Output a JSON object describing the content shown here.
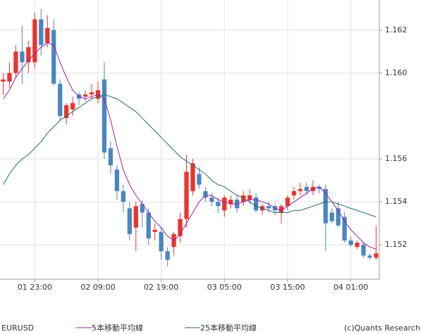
{
  "chart_data": {
    "type": "candlestick",
    "symbol": "EURUSD",
    "source": "(c)Quants Research",
    "categories": [
      null,
      null,
      null,
      null,
      null,
      "01 23:00",
      null,
      null,
      null,
      null,
      null,
      null,
      null,
      null,
      null,
      "02 09:00",
      null,
      null,
      null,
      null,
      null,
      null,
      null,
      null,
      null,
      "02 19:00",
      null,
      null,
      null,
      null,
      null,
      null,
      null,
      null,
      null,
      "03 05:00",
      null,
      null,
      null,
      null,
      null,
      null,
      null,
      null,
      null,
      "03 15:00",
      null,
      null,
      null,
      null,
      null,
      null,
      null,
      null,
      null,
      "04 01:00",
      null,
      null,
      null,
      null
    ],
    "open": [
      1.1596,
      1.1596,
      1.16,
      1.161,
      1.1605,
      1.1605,
      1.1625,
      1.1614,
      1.162,
      1.1595,
      1.1579,
      1.1583,
      1.159,
      1.1589,
      1.159,
      1.1588,
      1.1597,
      1.1565,
      1.1555,
      1.1545,
      1.1537,
      1.1528,
      1.1539,
      1.1535,
      1.1526,
      1.1526,
      1.1517,
      1.1519,
      1.1524,
      1.1532,
      1.1545,
      1.1553,
      1.1545,
      1.1542,
      1.154,
      1.1536,
      1.1539,
      1.1541,
      1.154,
      1.1541,
      1.1542,
      1.1536,
      1.1538,
      1.1538,
      1.1535,
      1.1538,
      1.1543,
      1.1545,
      1.1547,
      1.1545,
      1.1547,
      1.1546,
      1.1535,
      1.1537,
      1.1533,
      1.1522,
      1.1519,
      1.152,
      1.1515,
      1.1514
    ],
    "high": [
      1.16,
      1.1605,
      1.1613,
      1.1622,
      1.1615,
      1.1628,
      1.163,
      1.1627,
      1.1625,
      1.1597,
      1.1586,
      1.1589,
      1.1591,
      1.1592,
      1.1595,
      1.1596,
      1.1605,
      1.1568,
      1.1557,
      1.1548,
      1.154,
      1.154,
      1.1541,
      1.1537,
      1.153,
      1.1528,
      1.1519,
      1.1526,
      1.1535,
      1.1562,
      1.156,
      1.1556,
      1.1547,
      1.1544,
      1.1542,
      1.1543,
      1.1543,
      1.1543,
      1.1545,
      1.1546,
      1.1544,
      1.1539,
      1.154,
      1.1539,
      1.1539,
      1.1543,
      1.1547,
      1.1549,
      1.1549,
      1.155,
      1.1548,
      1.1548,
      1.1537,
      1.154,
      1.1535,
      1.1524,
      1.1522,
      1.1521,
      1.1516,
      1.1529
    ],
    "low": [
      1.159,
      1.1593,
      1.1598,
      1.1595,
      1.16,
      1.1602,
      1.1608,
      1.1612,
      1.1594,
      1.1578,
      1.1576,
      1.158,
      1.1585,
      1.1587,
      1.1588,
      1.1586,
      1.156,
      1.1553,
      1.1541,
      1.1535,
      1.1522,
      1.1517,
      1.1528,
      1.152,
      1.1522,
      1.1513,
      1.151,
      1.1515,
      1.1521,
      1.1528,
      1.1543,
      1.1546,
      1.154,
      1.1538,
      1.1535,
      1.1533,
      1.1537,
      1.1535,
      1.1538,
      1.1539,
      1.1535,
      1.1534,
      1.1535,
      1.1534,
      1.153,
      1.1536,
      1.1541,
      1.1543,
      1.1543,
      1.1543,
      1.1544,
      1.1517,
      1.153,
      1.1528,
      1.1521,
      1.1519,
      1.1518,
      1.1514,
      1.1513,
      1.1513
    ],
    "close": [
      1.1597,
      1.16,
      1.161,
      1.1605,
      1.1612,
      1.1625,
      1.1613,
      1.1621,
      1.1595,
      1.158,
      1.1585,
      1.1586,
      1.1588,
      1.159,
      1.1591,
      1.1592,
      1.1563,
      1.1557,
      1.1545,
      1.154,
      1.1525,
      1.1538,
      1.1535,
      1.1523,
      1.1527,
      1.1517,
      1.1513,
      1.1525,
      1.1532,
      1.1554,
      1.1558,
      1.1548,
      1.1542,
      1.154,
      1.1538,
      1.1542,
      1.1541,
      1.1537,
      1.1543,
      1.1543,
      1.1536,
      1.1538,
      1.1537,
      1.1536,
      1.1538,
      1.1542,
      1.1545,
      1.1546,
      1.1545,
      1.1547,
      1.1546,
      1.153,
      1.1531,
      1.1529,
      1.1522,
      1.152,
      1.1521,
      1.1515,
      1.1514,
      1.1516
    ],
    "up_color": "#e8352e",
    "down_color": "#4a86bf",
    "series": [
      {
        "name": "5本移動平均線",
        "color": "#9b1fa8",
        "values": [
          1.1588,
          1.1592,
          1.1598,
          1.1602,
          1.1606,
          1.1609,
          1.1612,
          1.1614,
          1.1613,
          1.1605,
          1.1598,
          1.1592,
          1.1589,
          1.1588,
          1.1589,
          1.159,
          1.1588,
          1.1578,
          1.1566,
          1.1555,
          1.1548,
          1.1543,
          1.1539,
          1.1535,
          1.1531,
          1.1528,
          1.1524,
          1.1522,
          1.1525,
          1.153,
          1.1535,
          1.154,
          1.1543,
          1.1543,
          1.1541,
          1.154,
          1.1539,
          1.1539,
          1.154,
          1.1541,
          1.1541,
          1.154,
          1.1539,
          1.1537,
          1.1536,
          1.1538,
          1.154,
          1.1542,
          1.1544,
          1.1546,
          1.1547,
          1.1544,
          1.154,
          1.1536,
          1.1531,
          1.1527,
          1.1524,
          1.1521,
          1.1519,
          1.1518
        ]
      },
      {
        "name": "25本移動平均線",
        "color": "#1f6f6a",
        "values": [
          1.1548,
          1.1553,
          1.1557,
          1.156,
          1.1562,
          1.1565,
          1.1568,
          1.1572,
          1.1575,
          1.1578,
          1.158,
          1.1582,
          1.1584,
          1.1586,
          1.1588,
          1.1589,
          1.159,
          1.1589,
          1.1588,
          1.1586,
          1.1584,
          1.1582,
          1.1579,
          1.1576,
          1.1573,
          1.157,
          1.1567,
          1.1564,
          1.1561,
          1.1559,
          1.1557,
          1.1555,
          1.1553,
          1.155,
          1.1548,
          1.1547,
          1.1545,
          1.1543,
          1.1542,
          1.154,
          1.1538,
          1.1537,
          1.1536,
          1.1535,
          1.1535,
          1.1535,
          1.1536,
          1.1536,
          1.1537,
          1.1538,
          1.1539,
          1.154,
          1.154,
          1.1539,
          1.1538,
          1.1537,
          1.1536,
          1.1535,
          1.1534,
          1.1533
        ]
      }
    ],
    "ylim": [
      1.1504,
      1.1634
    ],
    "yticks": [
      1.152,
      1.154,
      1.156,
      {
        "value": 1.16,
        "label": "1.160"
      },
      1.162
    ],
    "grid": true
  }
}
